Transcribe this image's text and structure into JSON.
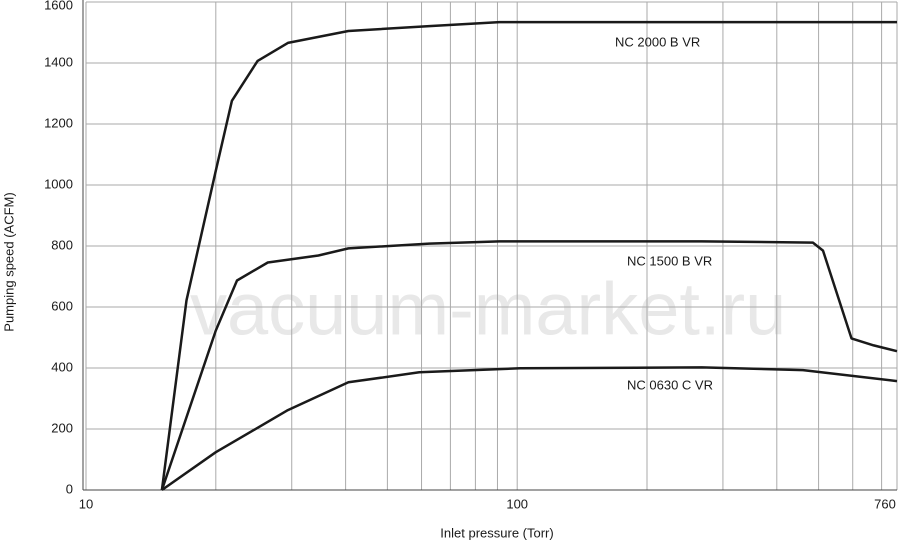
{
  "chart_data": {
    "type": "line",
    "xlabel": "Inlet pressure (Torr)",
    "ylabel": "Pumping speed (ACFM)",
    "watermark": "vacuum-market.ru",
    "xscale": "log",
    "xlim": [
      10,
      760
    ],
    "xticks": [
      10,
      100,
      760
    ],
    "x_minor_ticks": [
      20,
      30,
      40,
      50,
      60,
      70,
      80,
      90,
      200,
      300,
      400,
      500,
      600,
      700
    ],
    "ylim": [
      0,
      1600
    ],
    "yticks": [
      0,
      200,
      400,
      600,
      800,
      1000,
      1200,
      1400,
      1600
    ],
    "grid": true,
    "series": [
      {
        "name": "NC 2000 B VR",
        "color": "#1a1a1a",
        "x": [
          15,
          17.1,
          20,
          21.8,
          25,
          29.4,
          40.6,
          62.5,
          91,
          760
        ],
        "values": [
          0,
          622,
          1047,
          1276,
          1407,
          1466,
          1505,
          1521,
          1534,
          1534
        ]
      },
      {
        "name": "NC 1500 B VR",
        "color": "#1a1a1a",
        "x": [
          15,
          20,
          22.4,
          26.4,
          34.6,
          40.6,
          62.5,
          91,
          268,
          485,
          512,
          596,
          671,
          760
        ],
        "values": [
          0,
          523,
          687,
          746,
          769,
          792,
          808,
          815,
          815,
          811,
          785,
          497,
          474,
          455
        ]
      },
      {
        "name": "NC 0630 C VR",
        "color": "#1a1a1a",
        "x": [
          15,
          20,
          29.4,
          40.6,
          59.3,
          101.6,
          268,
          460,
          760
        ],
        "values": [
          0,
          124,
          262,
          353,
          386,
          399,
          402,
          393,
          357
        ]
      }
    ]
  }
}
